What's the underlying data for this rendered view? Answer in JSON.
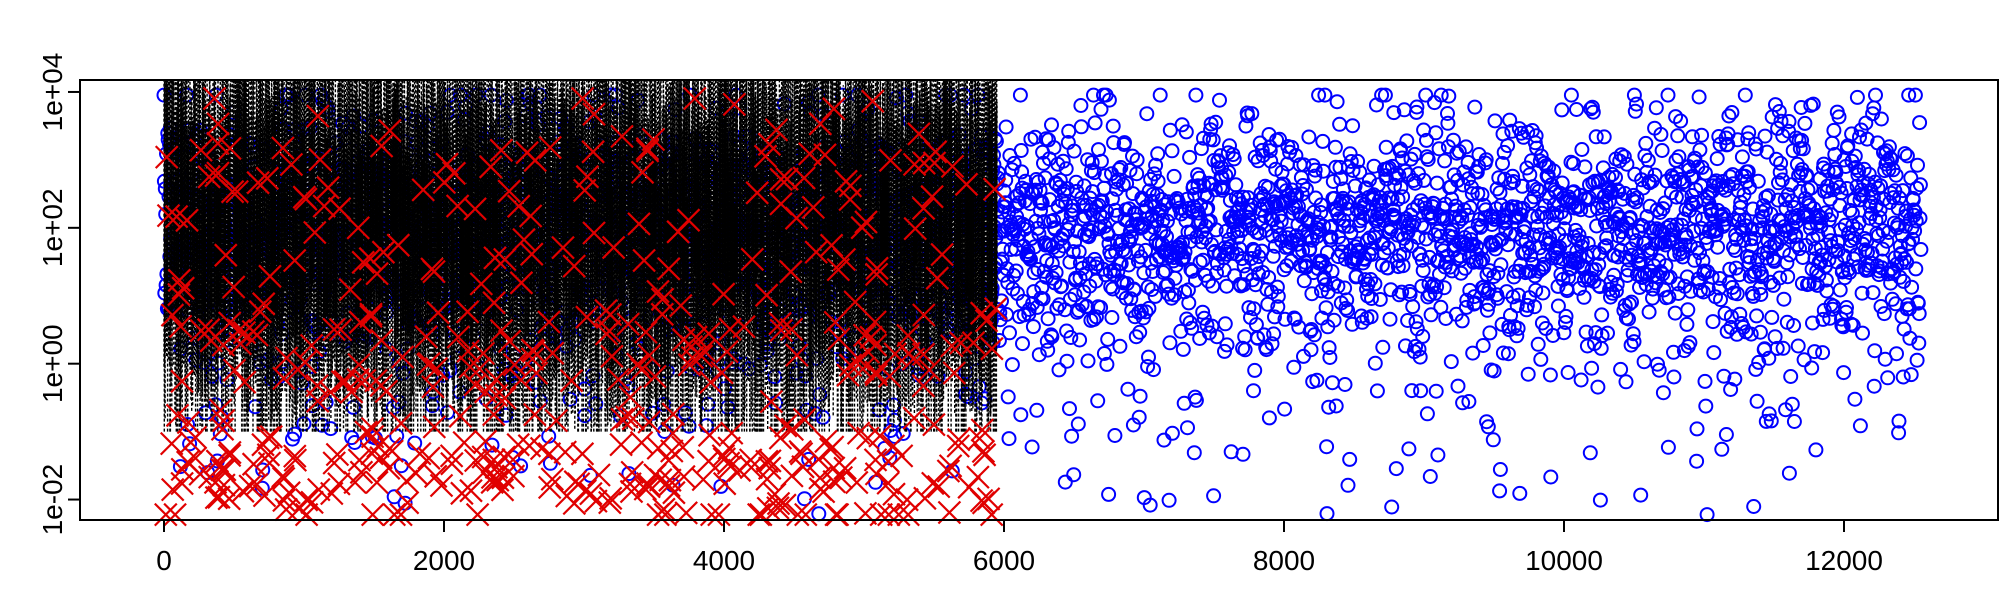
{
  "chart_data": {
    "type": "scatter",
    "title": "",
    "xlabel": "",
    "ylabel": "",
    "x_axis": {
      "range": [
        -600,
        13100
      ],
      "ticks": [
        0,
        2000,
        4000,
        6000,
        8000,
        10000,
        12000
      ],
      "tick_labels": [
        "0",
        "2000",
        "4000",
        "6000",
        "8000",
        "10000",
        "12000"
      ]
    },
    "y_axis": {
      "scale": "log10",
      "range": [
        0.005,
        15000
      ],
      "ticks": [
        0.01,
        1,
        100,
        10000
      ],
      "tick_labels": [
        "1e-02",
        "1e+00",
        "1e+02",
        "1e+04"
      ]
    },
    "grid": false,
    "legend": "none",
    "colors": {
      "circles": "#0000ff",
      "crosses": "#e00000",
      "intervals": "#000000"
    },
    "series": [
      {
        "marker": "open-circle",
        "color": "#0000ff",
        "note_x_range": [
          0,
          12550
        ],
        "y_typical": [
          1,
          1000
        ],
        "y_extreme": [
          0.006,
          9000
        ],
        "approx_count": 12500
      },
      {
        "marker": "cross",
        "color": "#e00000",
        "note_x_range": [
          0,
          5950
        ],
        "y_extreme": [
          0.006,
          8000
        ],
        "approx_count": 500
      },
      {
        "marker": "dotted-vertical-interval",
        "color": "#000000",
        "note_x_range": [
          0,
          5950
        ],
        "y_extreme": [
          0.1,
          15000
        ],
        "approx_count": 6000
      }
    ]
  }
}
